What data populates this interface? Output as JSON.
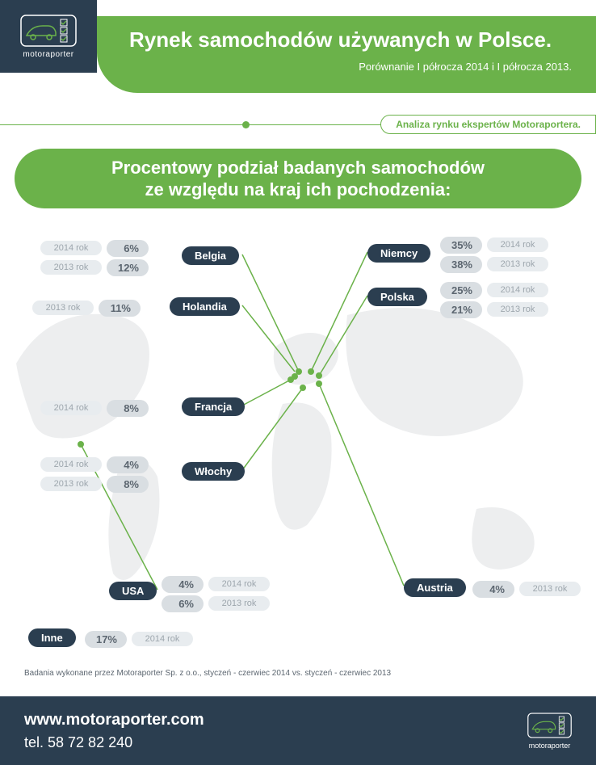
{
  "brand": "motoraporter",
  "header": {
    "title": "Rynek samochodów używanych w Polsce.",
    "subtitle": "Porównanie I półrocza 2014 i I półrocza 2013."
  },
  "analysis_label": "Analiza rynku ekspertów Motoraportera.",
  "section_title": "Procentowy podział badanych samochodów\nze względu na kraj ich pochodzenia:",
  "year_labels": {
    "y2014": "2014 rok",
    "y2013": "2013 rok"
  },
  "countries": {
    "belgia": {
      "label": "Belgia",
      "y2014": "6%",
      "y2013": "12%"
    },
    "holandia": {
      "label": "Holandia",
      "y2013": "11%"
    },
    "francja": {
      "label": "Francja",
      "y2014": "8%"
    },
    "wlochy": {
      "label": "Włochy",
      "y2014": "4%",
      "y2013": "8%"
    },
    "usa": {
      "label": "USA",
      "y2014": "4%",
      "y2013": "6%"
    },
    "inne": {
      "label": "Inne",
      "y2014": "17%"
    },
    "niemcy": {
      "label": "Niemcy",
      "y2014": "35%",
      "y2013": "38%"
    },
    "polska": {
      "label": "Polska",
      "y2014": "25%",
      "y2013": "21%"
    },
    "austria": {
      "label": "Austria",
      "y2013": "4%"
    }
  },
  "footnote": "Badania wykonane przez Motoraporter Sp. z o.o., styczeń - czerwiec 2014 vs. styczeń - czerwiec 2013",
  "footer": {
    "website": "www.motoraporter.com",
    "phone": "tel. 58 72 82 240"
  },
  "colors": {
    "green": "#6bb24a",
    "navy": "#2b3e50",
    "grey_text": "#9da6ad",
    "grey_pill": "#e8ecef",
    "grey_pill_dark": "#d9dee2"
  }
}
